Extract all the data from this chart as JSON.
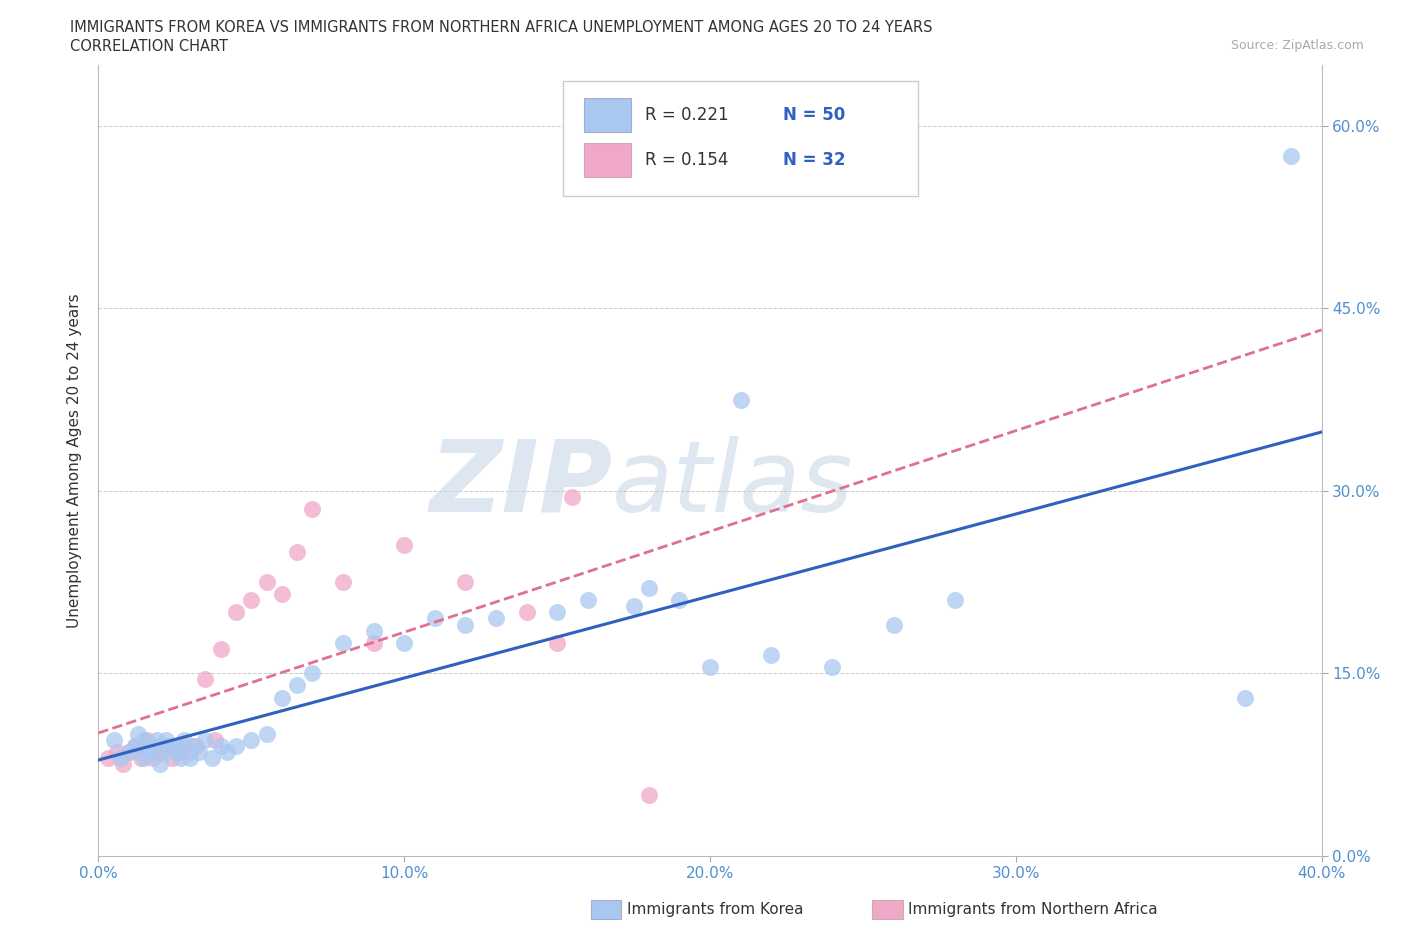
{
  "title_line1": "IMMIGRANTS FROM KOREA VS IMMIGRANTS FROM NORTHERN AFRICA UNEMPLOYMENT AMONG AGES 20 TO 24 YEARS",
  "title_line2": "CORRELATION CHART",
  "source_text": "Source: ZipAtlas.com",
  "ylabel": "Unemployment Among Ages 20 to 24 years",
  "xlim": [
    0.0,
    0.4
  ],
  "ylim": [
    0.0,
    0.65
  ],
  "xticks": [
    0.0,
    0.1,
    0.2,
    0.3,
    0.4
  ],
  "xticklabels": [
    "0.0%",
    "10.0%",
    "20.0%",
    "30.0%",
    "40.0%"
  ],
  "yticks": [
    0.0,
    0.15,
    0.3,
    0.45,
    0.6
  ],
  "yticklabels": [
    "0.0%",
    "15.0%",
    "30.0%",
    "45.0%",
    "60.0%"
  ],
  "korea_R": 0.221,
  "korea_N": 50,
  "africa_R": 0.154,
  "africa_N": 32,
  "korea_color": "#a8c8f0",
  "africa_color": "#f0a8c8",
  "korea_line_color": "#3060c0",
  "africa_line_color": "#e07090",
  "watermark_color": "#d8e4f0",
  "korea_scatter_x": [
    0.005,
    0.007,
    0.01,
    0.012,
    0.013,
    0.015,
    0.015,
    0.017,
    0.018,
    0.019,
    0.02,
    0.021,
    0.022,
    0.023,
    0.025,
    0.026,
    0.027,
    0.028,
    0.03,
    0.031,
    0.033,
    0.035,
    0.037,
    0.04,
    0.042,
    0.045,
    0.05,
    0.055,
    0.06,
    0.065,
    0.07,
    0.08,
    0.09,
    0.1,
    0.11,
    0.12,
    0.13,
    0.15,
    0.16,
    0.175,
    0.18,
    0.19,
    0.2,
    0.21,
    0.22,
    0.24,
    0.26,
    0.28,
    0.375,
    0.39
  ],
  "korea_scatter_y": [
    0.095,
    0.08,
    0.085,
    0.09,
    0.1,
    0.08,
    0.095,
    0.085,
    0.09,
    0.095,
    0.075,
    0.085,
    0.095,
    0.09,
    0.085,
    0.09,
    0.08,
    0.095,
    0.08,
    0.09,
    0.085,
    0.095,
    0.08,
    0.09,
    0.085,
    0.09,
    0.095,
    0.1,
    0.13,
    0.14,
    0.15,
    0.175,
    0.185,
    0.175,
    0.195,
    0.19,
    0.195,
    0.2,
    0.21,
    0.205,
    0.22,
    0.21,
    0.155,
    0.375,
    0.165,
    0.155,
    0.19,
    0.21,
    0.13,
    0.575
  ],
  "africa_scatter_x": [
    0.003,
    0.006,
    0.008,
    0.01,
    0.012,
    0.014,
    0.016,
    0.018,
    0.02,
    0.022,
    0.024,
    0.026,
    0.028,
    0.03,
    0.032,
    0.035,
    0.038,
    0.04,
    0.045,
    0.05,
    0.055,
    0.06,
    0.065,
    0.07,
    0.08,
    0.09,
    0.1,
    0.12,
    0.14,
    0.15,
    0.155,
    0.18
  ],
  "africa_scatter_y": [
    0.08,
    0.085,
    0.075,
    0.085,
    0.09,
    0.08,
    0.095,
    0.08,
    0.085,
    0.09,
    0.08,
    0.085,
    0.09,
    0.085,
    0.09,
    0.145,
    0.095,
    0.17,
    0.2,
    0.21,
    0.225,
    0.215,
    0.25,
    0.285,
    0.225,
    0.175,
    0.255,
    0.225,
    0.2,
    0.175,
    0.295,
    0.05
  ],
  "background_color": "#ffffff",
  "grid_color": "#cccccc",
  "legend_r_color": "#333333",
  "legend_n_color": "#3060c0",
  "tick_color": "#5090d0"
}
